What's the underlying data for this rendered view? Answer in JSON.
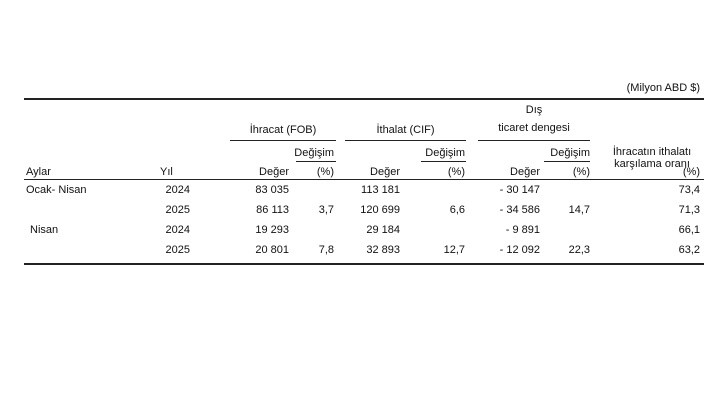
{
  "header": {
    "unit": "(Milyon ABD $)",
    "exports": "İhracat (FOB)",
    "imports": "İthalat (CIF)",
    "balance": [
      "Dış",
      "ticaret dengesi"
    ],
    "coverage": [
      "İhracatın ithalatı",
      "karşılama oranı"
    ],
    "months": "Aylar",
    "year": "Yıl",
    "value": "Değer",
    "change": "Değişim",
    "percent": "(%)"
  },
  "table": {
    "rows": [
      [
        "Ocak- Nisan",
        "2024",
        "83 035",
        null,
        "113 181",
        null,
        "- 30 147",
        null,
        "73,4"
      ],
      [
        null,
        "2025",
        "86 113",
        "3,7",
        "120 699",
        "6,6",
        "- 34 586",
        "14,7",
        "71,3"
      ],
      [
        "Nisan",
        "2024",
        "19 293",
        null,
        "29 184",
        null,
        "- 9 891",
        null,
        "66,1"
      ],
      [
        null,
        "2025",
        "20 801",
        "7,8",
        "32 893",
        "12,7",
        "- 12 092",
        "22,3",
        "63,2"
      ]
    ]
  }
}
